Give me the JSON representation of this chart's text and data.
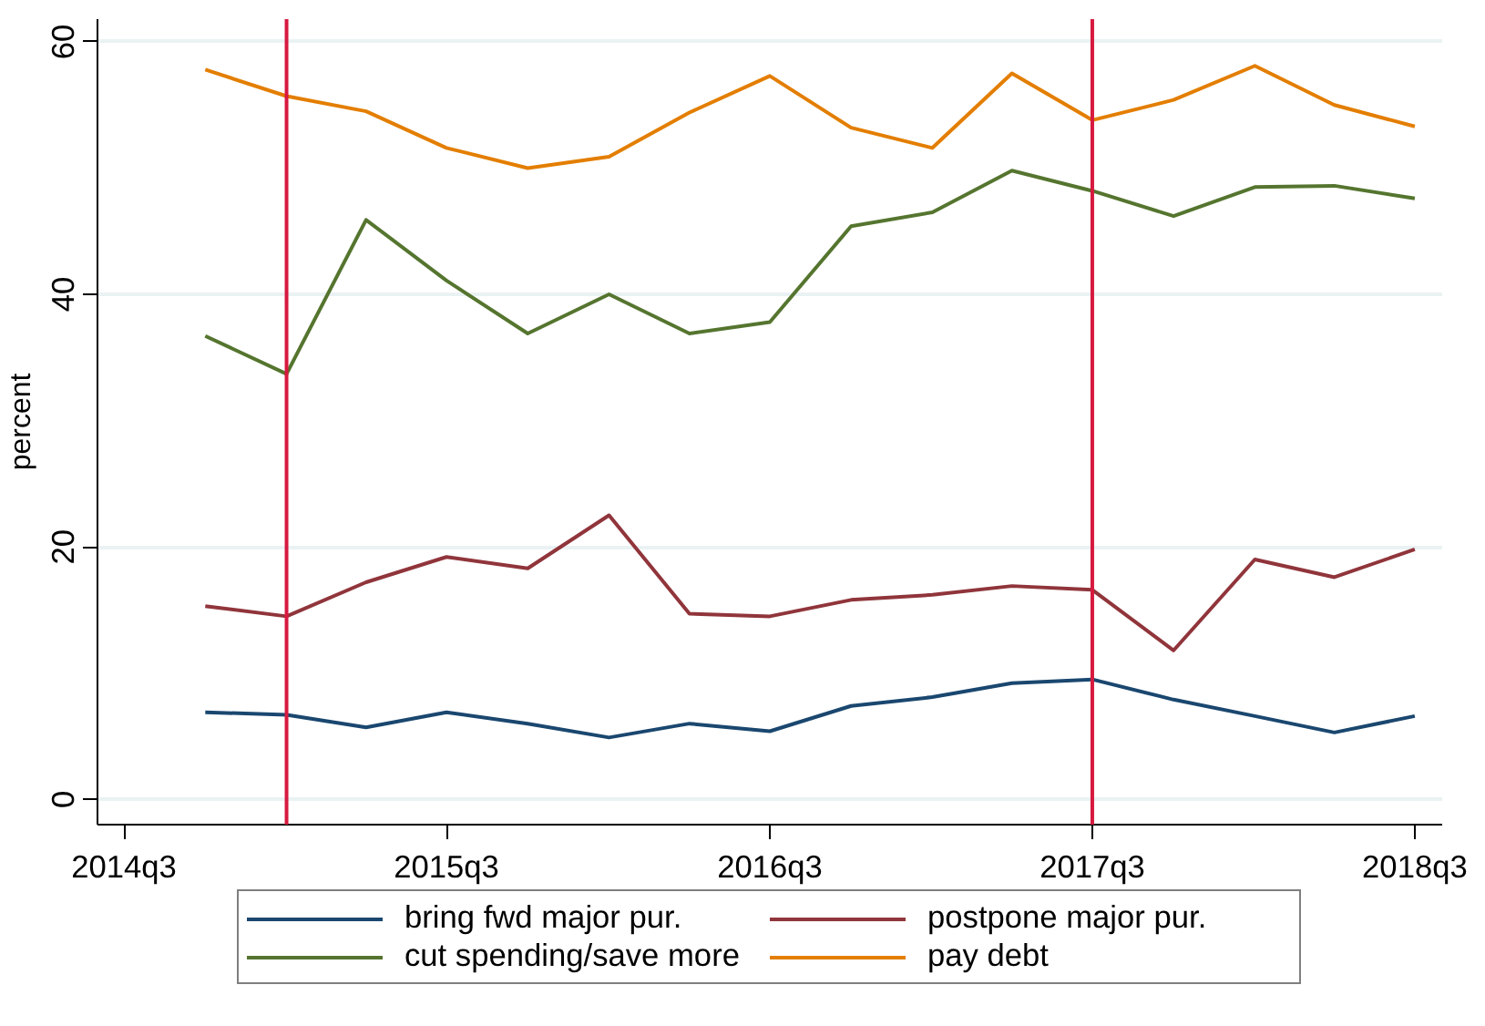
{
  "chart_data": {
    "type": "line",
    "ylabel": "percent",
    "x": [
      "2014-10",
      "2015-01",
      "2015-04",
      "2015-07",
      "2015-10",
      "2016-01",
      "2016-04",
      "2016-07",
      "2016-10",
      "2017-01",
      "2017-04",
      "2017-07",
      "2017-10",
      "2018-01",
      "2018-04",
      "2018-07"
    ],
    "series": [
      {
        "name": "bring fwd major pur.",
        "color": "#1a476f",
        "values": [
          6.9,
          6.7,
          5.7,
          6.9,
          6.0,
          4.9,
          6.0,
          5.4,
          7.4,
          8.1,
          9.2,
          9.5,
          7.9,
          6.6,
          5.3,
          6.6
        ]
      },
      {
        "name": "postpone major pur.",
        "color": "#90353b",
        "values": [
          15.3,
          14.5,
          17.2,
          19.2,
          18.3,
          22.5,
          14.7,
          14.5,
          15.8,
          16.2,
          16.9,
          16.6,
          11.8,
          19.0,
          17.6,
          19.8
        ]
      },
      {
        "name": "cut spending/save more",
        "color": "#55752f",
        "values": [
          36.7,
          33.7,
          45.9,
          41.1,
          36.9,
          40.0,
          36.9,
          37.8,
          45.4,
          46.5,
          49.8,
          48.2,
          46.2,
          48.5,
          48.6,
          47.6
        ]
      },
      {
        "name": "pay debt",
        "color": "#e37e00",
        "values": [
          57.8,
          55.7,
          54.5,
          51.6,
          50.0,
          50.9,
          54.4,
          57.3,
          53.2,
          51.6,
          57.5,
          53.8,
          55.4,
          58.1,
          55.0,
          53.3
        ]
      }
    ],
    "xlim": [
      "2014-06",
      "2018-08"
    ],
    "ylim": [
      -2,
      61.8
    ],
    "xticks": [
      {
        "value": "2014-07",
        "label": "2014q3"
      },
      {
        "value": "2015-07",
        "label": "2015q3"
      },
      {
        "value": "2016-07",
        "label": "2016q3"
      },
      {
        "value": "2017-07",
        "label": "2017q3"
      },
      {
        "value": "2018-07",
        "label": "2018q3"
      }
    ],
    "yticks": [
      0,
      20,
      40,
      60
    ],
    "ref_lines": [
      {
        "axis": "x",
        "value": "2015-01",
        "color": "#d7193f"
      },
      {
        "axis": "x",
        "value": "2017-07",
        "color": "#d7193f"
      }
    ],
    "grid": "y",
    "legend": "bottom",
    "line_style": "solid"
  }
}
